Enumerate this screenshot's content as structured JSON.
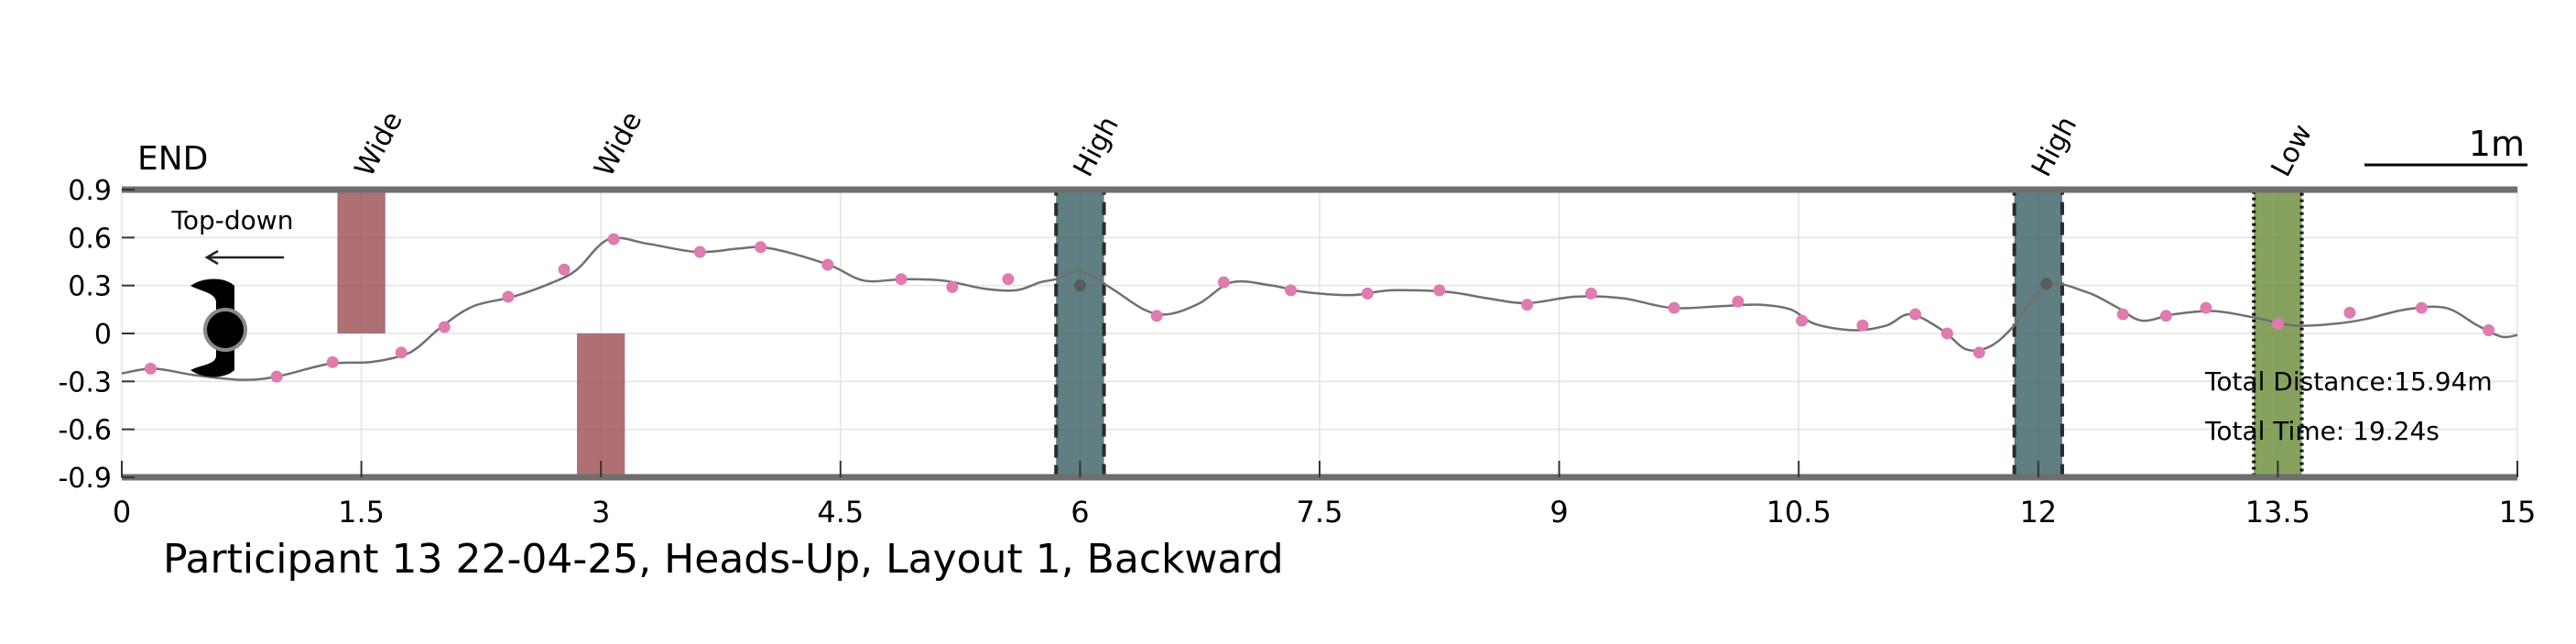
{
  "chart_data": {
    "type": "line",
    "title": "Participant 13 22-04-25, Heads-Up, Layout 1, Backward",
    "xlim": [
      0,
      15
    ],
    "ylim": [
      -0.9,
      0.9
    ],
    "x_ticks": [
      0,
      1.5,
      3,
      4.5,
      6,
      7.5,
      9,
      10.5,
      12,
      13.5,
      15
    ],
    "y_ticks": [
      0.9,
      0.6,
      0.3,
      0,
      -0.3,
      -0.6,
      -0.9
    ],
    "x_tick_labels": [
      "0",
      "1.5",
      "3",
      "4.5",
      "6",
      "7.5",
      "9",
      "10.5",
      "12",
      "13.5",
      "15"
    ],
    "y_tick_labels": [
      "0.9",
      "0.6",
      "0.3",
      "0",
      "-0.3",
      "-0.6",
      "-0.9"
    ],
    "grid": true,
    "series": [
      {
        "line": [
          [
            0,
            -0.25
          ],
          [
            0.2,
            -0.22
          ],
          [
            0.45,
            -0.26
          ],
          [
            0.75,
            -0.29
          ],
          [
            0.97,
            -0.27
          ],
          [
            1.3,
            -0.19
          ],
          [
            1.55,
            -0.18
          ],
          [
            1.75,
            -0.14
          ],
          [
            1.85,
            -0.09
          ],
          [
            2.0,
            0.04
          ],
          [
            2.2,
            0.17
          ],
          [
            2.45,
            0.23
          ],
          [
            2.7,
            0.32
          ],
          [
            2.85,
            0.4
          ],
          [
            3.05,
            0.59
          ],
          [
            3.3,
            0.56
          ],
          [
            3.6,
            0.51
          ],
          [
            3.85,
            0.53
          ],
          [
            4.0,
            0.54
          ],
          [
            4.2,
            0.5
          ],
          [
            4.45,
            0.42
          ],
          [
            4.65,
            0.33
          ],
          [
            4.9,
            0.34
          ],
          [
            5.15,
            0.33
          ],
          [
            5.4,
            0.28
          ],
          [
            5.6,
            0.27
          ],
          [
            5.75,
            0.32
          ],
          [
            5.85,
            0.34
          ],
          [
            6.0,
            0.39
          ],
          [
            6.2,
            0.28
          ],
          [
            6.4,
            0.15
          ],
          [
            6.55,
            0.12
          ],
          [
            6.75,
            0.19
          ],
          [
            6.95,
            0.32
          ],
          [
            7.2,
            0.3
          ],
          [
            7.4,
            0.26
          ],
          [
            7.7,
            0.24
          ],
          [
            7.95,
            0.27
          ],
          [
            8.3,
            0.26
          ],
          [
            8.55,
            0.22
          ],
          [
            8.8,
            0.19
          ],
          [
            9.1,
            0.23
          ],
          [
            9.4,
            0.22
          ],
          [
            9.7,
            0.16
          ],
          [
            10.0,
            0.17
          ],
          [
            10.25,
            0.18
          ],
          [
            10.45,
            0.15
          ],
          [
            10.6,
            0.06
          ],
          [
            10.85,
            0.02
          ],
          [
            11.05,
            0.05
          ],
          [
            11.2,
            0.12
          ],
          [
            11.4,
            0.02
          ],
          [
            11.55,
            -0.1
          ],
          [
            11.7,
            -0.08
          ],
          [
            11.85,
            0.05
          ],
          [
            12.05,
            0.3
          ],
          [
            12.3,
            0.26
          ],
          [
            12.5,
            0.16
          ],
          [
            12.65,
            0.08
          ],
          [
            12.85,
            0.12
          ],
          [
            13.1,
            0.14
          ],
          [
            13.35,
            0.1
          ],
          [
            13.6,
            0.05
          ],
          [
            13.85,
            0.06
          ],
          [
            14.05,
            0.09
          ],
          [
            14.3,
            0.15
          ],
          [
            14.55,
            0.16
          ],
          [
            14.75,
            0.05
          ],
          [
            14.9,
            -0.02
          ],
          [
            15.0,
            -0.01
          ]
        ],
        "markers": [
          [
            0.18,
            -0.22
          ],
          [
            0.97,
            -0.27
          ],
          [
            1.32,
            -0.18
          ],
          [
            1.75,
            -0.12
          ],
          [
            2.02,
            0.04
          ],
          [
            2.42,
            0.23
          ],
          [
            2.77,
            0.4
          ],
          [
            3.08,
            0.59
          ],
          [
            3.62,
            0.51
          ],
          [
            4.0,
            0.54
          ],
          [
            4.42,
            0.43
          ],
          [
            4.88,
            0.34
          ],
          [
            5.2,
            0.29
          ],
          [
            5.55,
            0.34
          ],
          [
            6.48,
            0.11
          ],
          [
            6.9,
            0.32
          ],
          [
            7.32,
            0.27
          ],
          [
            7.8,
            0.25
          ],
          [
            8.25,
            0.27
          ],
          [
            8.8,
            0.18
          ],
          [
            9.2,
            0.25
          ],
          [
            9.72,
            0.16
          ],
          [
            10.12,
            0.2
          ],
          [
            10.52,
            0.08
          ],
          [
            10.9,
            0.05
          ],
          [
            11.23,
            0.12
          ],
          [
            11.43,
            0.0
          ],
          [
            11.63,
            -0.12
          ],
          [
            12.53,
            0.12
          ],
          [
            12.8,
            0.11
          ],
          [
            13.05,
            0.16
          ],
          [
            13.5,
            0.06
          ],
          [
            13.95,
            0.13
          ],
          [
            14.4,
            0.16
          ],
          [
            14.82,
            0.02
          ]
        ],
        "dark_markers": [
          [
            6.0,
            0.3
          ],
          [
            12.05,
            0.31
          ]
        ]
      }
    ],
    "obstacles": [
      {
        "label": "Wide",
        "x": [
          1.35,
          1.65
        ],
        "y": [
          0,
          0.9
        ],
        "color": "#A0575A"
      },
      {
        "label": "Wide",
        "x": [
          2.85,
          3.15
        ],
        "y": [
          -0.9,
          0
        ],
        "color": "#A0575A"
      },
      {
        "label": "High",
        "x": [
          5.85,
          6.15
        ],
        "y": [
          -0.9,
          0.9
        ],
        "color": "#3D6367"
      },
      {
        "label": "High",
        "x": [
          11.85,
          12.15
        ],
        "y": [
          -0.9,
          0.9
        ],
        "color": "#3D6367"
      },
      {
        "label": "Low",
        "x": [
          13.35,
          13.65
        ],
        "y": [
          -0.9,
          0.9
        ],
        "color": "#6B8E3A"
      }
    ],
    "colors": {
      "line": "#707070",
      "marker": "#E07BAE",
      "dark_marker": "#5A5A5A",
      "axis": "#6E6E6E",
      "grid": "#E3E3E3",
      "wide": "#A0575A",
      "high": "#3D6367",
      "low": "#6B8E3A"
    },
    "annotations": {
      "end_label": "END",
      "top_down_label": "Top-down",
      "scale_label": "1m",
      "total_distance": "Total Distance:15.94m",
      "total_time": "Total Time: 19.24s"
    }
  }
}
